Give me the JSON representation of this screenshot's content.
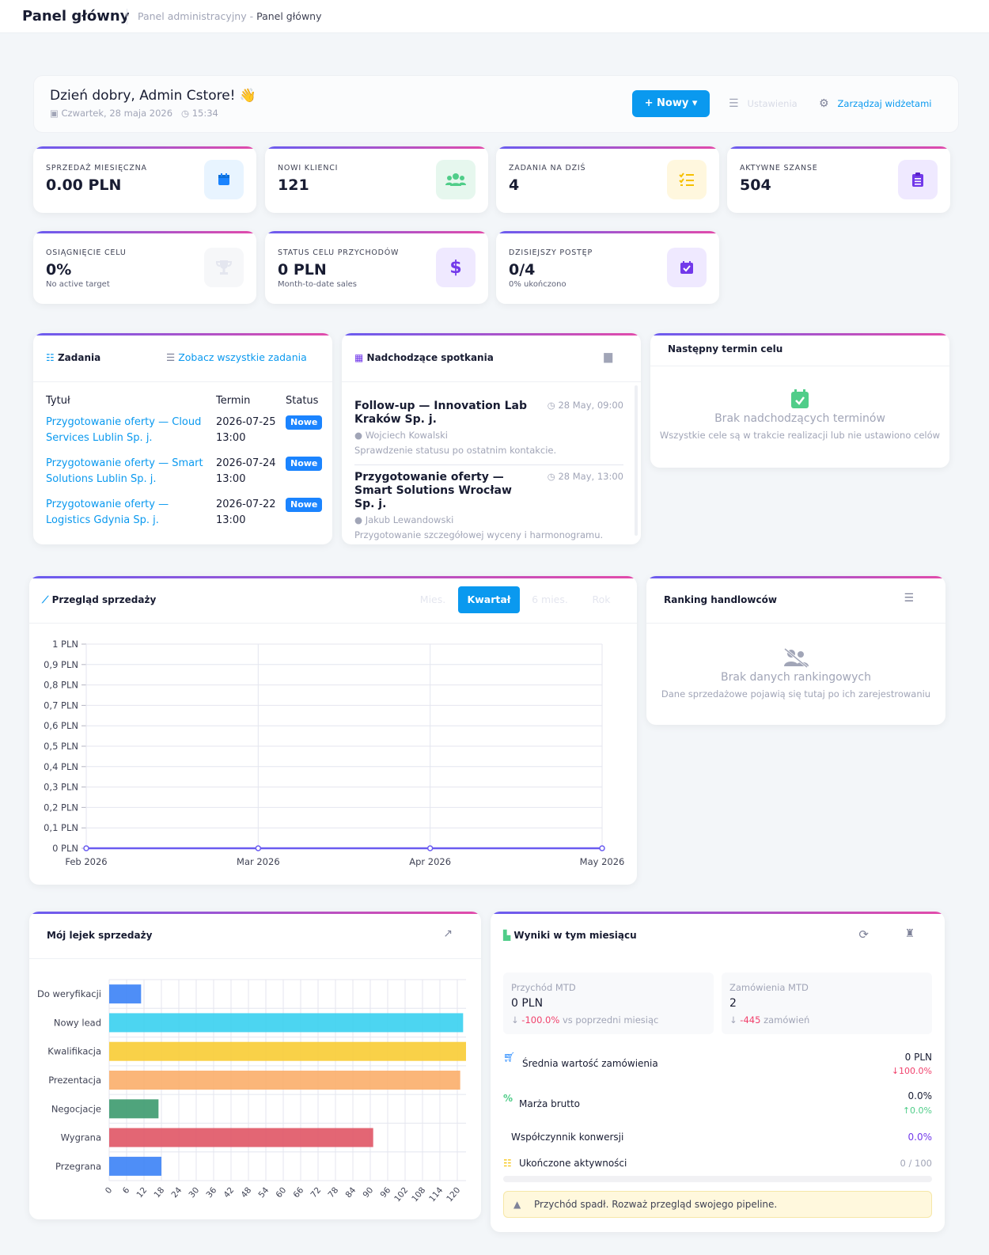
{
  "header": {
    "title": "Panel główny",
    "breadcrumb_root": "Panel administracyjny",
    "breadcrumb_sep": "-",
    "breadcrumb_current": "Panel główny"
  },
  "welcome": {
    "greeting": "Dzień dobry, Admin Cstore! 👋",
    "date": "Czwartek, 28 maja 2026",
    "time": "15:34",
    "new_button": "+ Nowy ▾",
    "settings": "Ustawienia",
    "manage_widgets": "Zarządzaj widżetami"
  },
  "stats": [
    {
      "label": "Sprzedaż miesięczna",
      "value": "0.00 PLN",
      "icon": "calendar-icon"
    },
    {
      "label": "Nowi klienci",
      "value": "121",
      "icon": "users-icon"
    },
    {
      "label": "Zadania na dziś",
      "value": "4",
      "icon": "tasks-icon"
    },
    {
      "label": "Aktywne szanse",
      "value": "504",
      "icon": "clipboard-icon"
    },
    {
      "label": "Osiągnięcie celu",
      "value": "0%",
      "sub": "No active target",
      "icon": "trophy-icon"
    },
    {
      "label": "Status celu przychodów",
      "value": "0 PLN",
      "sub": "Month-to-date sales",
      "icon": "dollar-icon"
    },
    {
      "label": "Dzisiejszy postęp",
      "value": "0/4",
      "sub": "0% ukończono",
      "icon": "calendar-check-icon"
    }
  ],
  "tasks": {
    "title": "Zadania",
    "link": "Zobacz wszystkie zadania",
    "columns": [
      "Tytuł",
      "Termin",
      "Status"
    ],
    "rows": [
      {
        "title": "Przygotowanie oferty — Cloud Services Lublin Sp. j.",
        "due": "2026-07-25 13:00",
        "status": "Nowe"
      },
      {
        "title": "Przygotowanie oferty — Smart Solutions Lublin Sp. j.",
        "due": "2026-07-24 13:00",
        "status": "Nowe"
      },
      {
        "title": "Przygotowanie oferty — Logistics Gdynia Sp. j.",
        "due": "2026-07-22 13:00",
        "status": "Nowe"
      }
    ]
  },
  "meetings": {
    "title": "Nadchodzące spotkania",
    "items": [
      {
        "name": "Follow-up — Innovation Lab Kraków Sp. j.",
        "time": "28 May, 09:00",
        "person": "Wojciech Kowalski",
        "desc": "Sprawdzenie statusu po ostatnim kontakcie."
      },
      {
        "name": "Przygotowanie oferty — Smart Solutions Wrocław Sp. j.",
        "time": "28 May, 13:00",
        "person": "Jakub Lewandowski",
        "desc": "Przygotowanie szczegółowej wyceny i harmonogramu."
      }
    ]
  },
  "next_deadline": {
    "title": "Następny termin celu",
    "empty_title": "Brak nadchodzących terminów",
    "empty_sub": "Wszystkie cele są w trakcie realizacji lub nie ustawiono celów"
  },
  "sales_overview": {
    "title": "Przegląd sprzedaży",
    "tabs": [
      "Mies.",
      "Kwartał",
      "6 mies.",
      "Rok"
    ],
    "active_tab": "Kwartał"
  },
  "ranking": {
    "title": "Ranking handlowców",
    "empty_title": "Brak danych rankingowych",
    "empty_sub": "Dane sprzedażowe pojawią się tutaj po ich zarejestrowaniu"
  },
  "funnel": {
    "title": "Mój lejek sprzedaży"
  },
  "results": {
    "title": "Wyniki w tym miesiącu",
    "revenue": {
      "label": "Przychód MTD",
      "value": "0 PLN",
      "change": "-100.0%",
      "note": "vs poprzedni miesiąc"
    },
    "orders": {
      "label": "Zamówienia MTD",
      "value": "2",
      "change": "-445",
      "note": "zamówień"
    },
    "avg_order": {
      "label": "Średnia wartość zamówienia",
      "value": "0 PLN",
      "change": "100.0%"
    },
    "margin": {
      "label": "Marża brutto",
      "value": "0.0%",
      "change": "0.0%"
    },
    "conversion": {
      "label": "Współczynnik konwersji",
      "value": "0.0%"
    },
    "activities": {
      "label": "Ukończone aktywności",
      "value": "0 / 100",
      "progress": 0
    },
    "warning": "Przychód spadł. Rozważ przegląd swojego pipeline."
  },
  "chart_data": [
    {
      "type": "line",
      "title": "Przegląd sprzedaży",
      "x": [
        "Feb 2026",
        "Mar 2026",
        "Apr 2026",
        "May 2026"
      ],
      "series": [
        {
          "values": [
            0,
            0,
            0,
            0
          ]
        }
      ],
      "yticks": [
        "0 PLN",
        "0,1 PLN",
        "0,2 PLN",
        "0,3 PLN",
        "0,4 PLN",
        "0,5 PLN",
        "0,6 PLN",
        "0,7 PLN",
        "0,8 PLN",
        "0,9 PLN",
        "1 PLN"
      ],
      "ylim": [
        0,
        1
      ],
      "grid": true,
      "color": "#6a5cf0"
    },
    {
      "type": "bar",
      "orientation": "horizontal",
      "title": "Mój lejek sprzedaży",
      "categories": [
        "Do weryfikacji",
        "Nowy lead",
        "Kwalifikacja",
        "Prezentacja",
        "Negocjacje",
        "Wygrana",
        "Przegrana"
      ],
      "values": [
        11,
        122,
        123,
        121,
        17,
        91,
        18
      ],
      "colors": [
        "#3b82f6",
        "#38d0f0",
        "#f8cc34",
        "#fbae6a",
        "#3c9a6e",
        "#e05565",
        "#3b82f6"
      ],
      "xticks": [
        0,
        6,
        12,
        18,
        24,
        30,
        36,
        42,
        48,
        54,
        60,
        66,
        72,
        78,
        84,
        90,
        96,
        102,
        108,
        114,
        120
      ],
      "xlim": [
        0,
        123
      ],
      "grid": true
    }
  ]
}
